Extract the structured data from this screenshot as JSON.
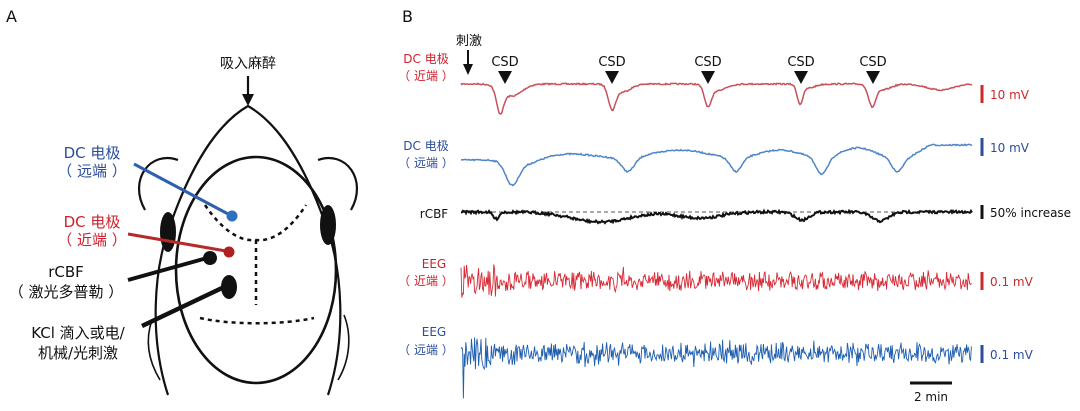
{
  "panel_a": {
    "label": "A",
    "anesthesia_label": "吸入麻醉",
    "annotations": {
      "dc_blue": {
        "line1": "DC 电极",
        "line2": "（ 远端 ）",
        "color": "#2a4d9c"
      },
      "dc_red": {
        "line1": "DC 电极",
        "line2": "（ 近端 ）",
        "color": "#d0202c"
      },
      "rcbf": {
        "line1": "rCBF",
        "line2": "（ 激光多普勒 ）",
        "color": "#111111"
      },
      "kcl": {
        "line1": "KCl 滴入或电/",
        "line2": "机械/光刺激",
        "color": "#111111"
      }
    }
  },
  "panel_b": {
    "label": "B",
    "stim_label": "刺激",
    "csd_label": "CSD",
    "traces": [
      {
        "name": "dc-proximal",
        "label_line1": "DC 电极",
        "label_line2": "（ 近端 ）",
        "label_color": "#d0202c",
        "trace_color": "#c9505a",
        "scale_label": "10 mV",
        "scale_color": "#c92a2a"
      },
      {
        "name": "dc-distal",
        "label_line1": "DC 电极",
        "label_line2": "（ 远端 ）",
        "label_color": "#2a4d9c",
        "trace_color": "#4f86c9",
        "scale_label": "10 mV",
        "scale_color": "#2a4d9c"
      },
      {
        "name": "rcbf",
        "label_line1": "rCBF",
        "label_line2": "",
        "label_color": "#111111",
        "trace_color": "#111111",
        "scale_label": "50% increase",
        "scale_color": "#111111"
      },
      {
        "name": "eeg-proximal",
        "label_line1": "EEG",
        "label_line2": "（ 近端 ）",
        "label_color": "#d0202c",
        "trace_color": "#d62a36",
        "scale_label": "0.1 mV",
        "scale_color": "#c92a2a"
      },
      {
        "name": "eeg-distal",
        "label_line1": "EEG",
        "label_line2": "（ 远端 ）",
        "label_color": "#2a4d9c",
        "trace_color": "#1f5fb0",
        "scale_label": "0.1 mV",
        "scale_color": "#2a4d9c"
      }
    ],
    "time_scale_label": "2 min"
  }
}
